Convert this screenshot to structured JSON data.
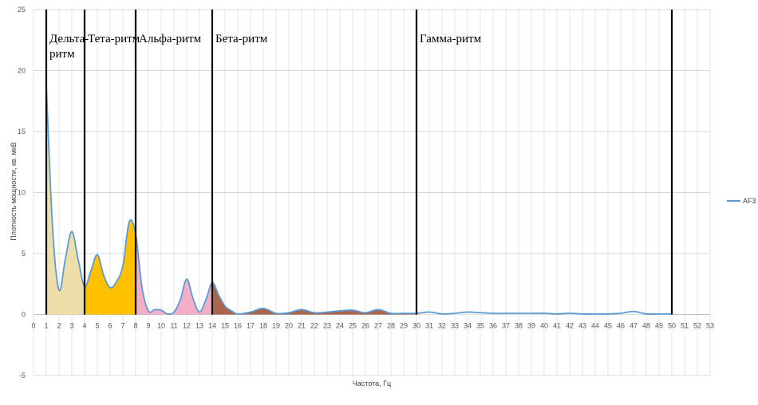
{
  "chart_data": {
    "type": "area",
    "xlabel": "Частота, Гц",
    "ylabel": "Плотность мощности, кв. мкВ",
    "xlim": [
      0,
      53
    ],
    "ylim": [
      -5,
      25
    ],
    "x_ticks": [
      0,
      1,
      2,
      3,
      4,
      5,
      6,
      7,
      8,
      9,
      10,
      11,
      12,
      13,
      14,
      15,
      16,
      17,
      18,
      19,
      20,
      21,
      22,
      23,
      24,
      25,
      26,
      27,
      28,
      29,
      30,
      31,
      32,
      33,
      34,
      35,
      36,
      37,
      38,
      39,
      40,
      41,
      42,
      43,
      44,
      45,
      46,
      47,
      48,
      49,
      50,
      51,
      52,
      53
    ],
    "y_ticks": [
      -5,
      0,
      5,
      10,
      15,
      20,
      25
    ],
    "grid": true,
    "legend_position": "right",
    "series": [
      {
        "name": "AF3",
        "color": "#5B9BD5",
        "x": [
          1,
          1.5,
          2,
          2.5,
          3,
          3.5,
          4,
          4.5,
          5,
          5.5,
          6,
          6.5,
          7,
          7.5,
          8,
          8.5,
          9,
          9.5,
          10,
          10.5,
          11,
          11.5,
          12,
          12.5,
          13,
          13.5,
          14,
          14.5,
          15,
          15.5,
          16,
          17,
          18,
          19,
          20,
          21,
          22,
          23,
          24,
          25,
          26,
          27,
          28,
          29,
          30,
          31,
          32,
          33,
          34,
          35,
          36,
          37,
          38,
          39,
          40,
          41,
          42,
          43,
          44,
          45,
          46,
          47,
          48,
          49,
          50
        ],
        "values": [
          18.8,
          7.0,
          2.0,
          4.6,
          6.8,
          4.5,
          2.3,
          3.6,
          4.9,
          3.2,
          2.2,
          2.7,
          4.0,
          7.6,
          6.6,
          2.2,
          0.3,
          0.4,
          0.35,
          0.05,
          0.2,
          1.2,
          2.9,
          1.3,
          0.2,
          1.2,
          2.6,
          1.6,
          0.7,
          0.3,
          0.05,
          0.2,
          0.5,
          0.1,
          0.15,
          0.4,
          0.15,
          0.2,
          0.3,
          0.35,
          0.15,
          0.4,
          0.1,
          0.1,
          0.1,
          0.2,
          0.05,
          0.1,
          0.2,
          0.15,
          0.1,
          0.1,
          0.1,
          0.1,
          0.1,
          0.05,
          0.1,
          0.05,
          0.05,
          0.05,
          0.1,
          0.25,
          0.05,
          0.05,
          0.05
        ]
      }
    ],
    "bands": [
      {
        "label": "Дельта-ритм",
        "label_lines": [
          "Дельта-",
          "ритм"
        ],
        "from": 1,
        "to": 4,
        "fill": "#EEDFAA"
      },
      {
        "label": "Тета-ритм",
        "label_lines": [
          "Тета-ритм"
        ],
        "from": 4,
        "to": 8,
        "fill": "#FFC000"
      },
      {
        "label": "Альфа-ритм",
        "label_lines": [
          "Альфа-ритм"
        ],
        "from": 8,
        "to": 14,
        "fill": "#F4AFC8"
      },
      {
        "label": "Бета-ритм",
        "label_lines": [
          "Бета-ритм"
        ],
        "from": 14,
        "to": 30,
        "fill": "#A9664A"
      },
      {
        "label": "Гамма-ритм",
        "label_lines": [
          "Гамма-ритм"
        ],
        "from": 30,
        "to": 50,
        "fill": "#FFFFFF"
      }
    ],
    "boundaries": [
      1,
      4,
      8,
      14,
      30,
      50
    ]
  }
}
